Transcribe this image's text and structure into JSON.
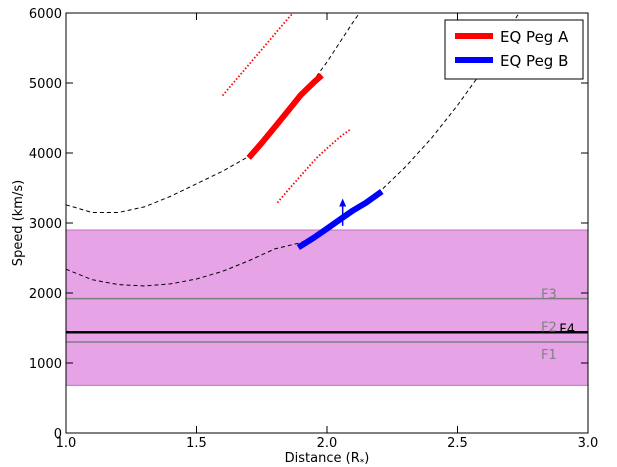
{
  "chart_data": {
    "type": "line",
    "title": "",
    "xlabel": "Distance (R",
    "xlabel_sub": "*",
    "xlabel_suffix": ")",
    "ylabel": "Speed (km/s)",
    "xlim": [
      1.0,
      3.0
    ],
    "ylim": [
      0,
      6000
    ],
    "x_ticks": [
      1.0,
      1.5,
      2.0,
      2.5,
      3.0
    ],
    "x_tick_labels": [
      "1.0",
      "1.5",
      "2.0",
      "2.5",
      "3.0"
    ],
    "y_ticks": [
      0,
      1000,
      2000,
      3000,
      4000,
      5000,
      6000
    ],
    "y_tick_labels": [
      "0",
      "1000",
      "2000",
      "3000",
      "4000",
      "5000",
      "6000"
    ],
    "grid": false,
    "legend_position": "top-right",
    "colors": {
      "eq_peg_a": "#ff0000",
      "eq_peg_b": "#0000ff",
      "band_fill": "#e6a3e6",
      "band_edge": "#c070c0",
      "model_curve": "#000000",
      "ref_line": "#808080",
      "f4_line": "#000000"
    },
    "shaded_band": {
      "y_min": 680,
      "y_max": 2900
    },
    "series": [
      {
        "name": "EQ Peg A",
        "style": "thick-solid",
        "color": "#ff0000",
        "x": [
          1.7,
          1.75,
          1.8,
          1.85,
          1.9,
          1.95,
          1.98
        ],
        "y": [
          3930,
          4145,
          4370,
          4600,
          4830,
          5010,
          5110
        ]
      },
      {
        "name": "EQ Peg B",
        "style": "thick-solid",
        "color": "#0000ff",
        "x": [
          1.89,
          1.95,
          2.0,
          2.05,
          2.1,
          2.15,
          2.21
        ],
        "y": [
          2650,
          2790,
          2920,
          3050,
          3180,
          3290,
          3450
        ]
      }
    ],
    "uncertainty_curves": [
      {
        "color": "#ff0000",
        "style": "dotted",
        "x": [
          1.6,
          1.65,
          1.7,
          1.75,
          1.8,
          1.85,
          1.87
        ],
        "y": [
          4820,
          5040,
          5260,
          5480,
          5700,
          5920,
          6000
        ]
      },
      {
        "color": "#ff0000",
        "style": "dotted",
        "x": [
          1.81,
          1.86,
          1.91,
          1.96,
          2.01,
          2.05,
          2.09
        ],
        "y": [
          3290,
          3510,
          3720,
          3930,
          4100,
          4230,
          4340
        ]
      }
    ],
    "model_curves": [
      {
        "style": "dashed",
        "color": "#000000",
        "x": [
          1.0,
          1.1,
          1.2,
          1.3,
          1.4,
          1.5,
          1.6,
          1.7,
          1.8,
          1.9,
          2.0,
          2.1,
          2.2,
          2.3
        ],
        "y": [
          3260,
          3150,
          3150,
          3230,
          3380,
          3560,
          3740,
          3950,
          4340,
          4790,
          5300,
          5870,
          6400,
          7000
        ]
      },
      {
        "style": "dashed",
        "color": "#000000",
        "x": [
          1.0,
          1.1,
          1.2,
          1.3,
          1.4,
          1.5,
          1.6,
          1.7,
          1.8,
          1.9,
          2.0,
          2.1,
          2.2,
          2.3,
          2.4,
          2.5,
          2.6,
          2.7,
          2.8
        ],
        "y": [
          2340,
          2190,
          2120,
          2100,
          2130,
          2200,
          2310,
          2460,
          2630,
          2720,
          2900,
          3150,
          3440,
          3800,
          4210,
          4680,
          5200,
          5780,
          6400
        ]
      }
    ],
    "reference_lines": [
      {
        "label": "F1",
        "y": 1300,
        "color": "#808080",
        "label_x": 2.82,
        "label_y": 1130
      },
      {
        "label": "F2",
        "y": 1440,
        "color": "#808080",
        "label_x": 2.82,
        "label_y": 1520
      },
      {
        "label": "F3",
        "y": 1920,
        "color": "#808080",
        "label_x": 2.82,
        "label_y": 1990
      },
      {
        "label": "F4",
        "y": 1440,
        "color": "#000000",
        "label_x": 2.89,
        "label_y": 1490
      }
    ],
    "arrow": {
      "x": 2.06,
      "y_from": 2960,
      "y_to": 3350,
      "color": "#0000ff"
    }
  }
}
